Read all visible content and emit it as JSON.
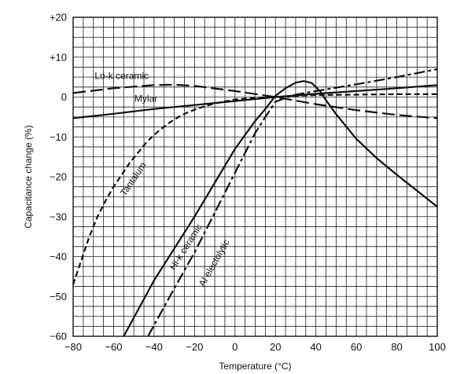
{
  "chart_data": {
    "type": "line",
    "title": "",
    "xlabel": "Temperature (°C)",
    "ylabel": "Capacitance change (%)",
    "xlim": [
      -80,
      100
    ],
    "ylim": [
      -60,
      20
    ],
    "x_ticks": [
      "−80",
      "−60",
      "−40",
      "−20",
      "0",
      "20",
      "40",
      "60",
      "80",
      "100"
    ],
    "y_ticks": [
      "+20",
      "+10",
      "0",
      "−10",
      "−20",
      "−30",
      "−40",
      "−50",
      "−60"
    ],
    "grid": true,
    "legend": "none",
    "series": [
      {
        "name": "Lo-k ceramic",
        "style": "long-dash",
        "label_pos": [
          -56,
          4.5
        ],
        "points": [
          [
            -80,
            1
          ],
          [
            -60,
            2.2
          ],
          [
            -40,
            3
          ],
          [
            -30,
            3.1
          ],
          [
            -20,
            2.8
          ],
          [
            0,
            1.5
          ],
          [
            20,
            0
          ],
          [
            40,
            -1.8
          ],
          [
            60,
            -3.3
          ],
          [
            80,
            -4.5
          ],
          [
            100,
            -5.3
          ]
        ]
      },
      {
        "name": "Mylar",
        "style": "solid",
        "label_pos": [
          -44,
          -1.2
        ],
        "points": [
          [
            -80,
            -5.3
          ],
          [
            -60,
            -4.2
          ],
          [
            -40,
            -3
          ],
          [
            -20,
            -2
          ],
          [
            0,
            -1
          ],
          [
            20,
            0
          ],
          [
            40,
            0.8
          ],
          [
            60,
            1.5
          ],
          [
            80,
            2.2
          ],
          [
            100,
            3
          ]
        ]
      },
      {
        "name": "Tantalum",
        "style": "dash",
        "label_pos": [
          -49,
          -21
        ],
        "points": [
          [
            -80,
            -47
          ],
          [
            -76,
            -41
          ],
          [
            -72,
            -35
          ],
          [
            -68,
            -30
          ],
          [
            -64,
            -26
          ],
          [
            -60,
            -22.5
          ],
          [
            -56,
            -19.5
          ],
          [
            -52,
            -16.5
          ],
          [
            -48,
            -14
          ],
          [
            -44,
            -11.5
          ],
          [
            -40,
            -9.5
          ],
          [
            -36,
            -7.8
          ],
          [
            -32,
            -6.3
          ],
          [
            -28,
            -5
          ],
          [
            -24,
            -4
          ],
          [
            -20,
            -3.2
          ],
          [
            -16,
            -2.5
          ],
          [
            -12,
            -1.9
          ],
          [
            -8,
            -1.4
          ],
          [
            -4,
            -1
          ],
          [
            0,
            -0.6
          ],
          [
            10,
            -0.2
          ],
          [
            20,
            0
          ],
          [
            30,
            0.3
          ],
          [
            40,
            0.5
          ],
          [
            60,
            0.6
          ],
          [
            80,
            0.7
          ],
          [
            100,
            0.7
          ]
        ]
      },
      {
        "name": "Hi-k ceramic",
        "style": "solid",
        "label_pos": [
          -23,
          -38
        ],
        "points": [
          [
            -55,
            -60
          ],
          [
            -40,
            -46
          ],
          [
            -20,
            -30
          ],
          [
            0,
            -13
          ],
          [
            10,
            -6
          ],
          [
            15,
            -3
          ],
          [
            20,
            0.3
          ],
          [
            25,
            2.2
          ],
          [
            30,
            3.6
          ],
          [
            34,
            4
          ],
          [
            38,
            3.5
          ],
          [
            42,
            1.5
          ],
          [
            45,
            -0.8
          ],
          [
            50,
            -4.3
          ],
          [
            60,
            -10.5
          ],
          [
            70,
            -15.3
          ],
          [
            80,
            -19.5
          ],
          [
            90,
            -23.5
          ],
          [
            100,
            -27.5
          ]
        ]
      },
      {
        "name": "Al electolytic",
        "style": "long-short-dash",
        "label_pos": [
          -9,
          -42
        ],
        "points": [
          [
            -43,
            -60
          ],
          [
            -30,
            -48
          ],
          [
            -20,
            -39
          ],
          [
            -10,
            -29
          ],
          [
            0,
            -19
          ],
          [
            10,
            -9
          ],
          [
            15,
            -5
          ],
          [
            20,
            -1.2
          ],
          [
            25,
            -0.2
          ],
          [
            30,
            0.6
          ],
          [
            40,
            1.5
          ],
          [
            60,
            3.2
          ],
          [
            80,
            5
          ],
          [
            100,
            7
          ]
        ]
      }
    ]
  }
}
